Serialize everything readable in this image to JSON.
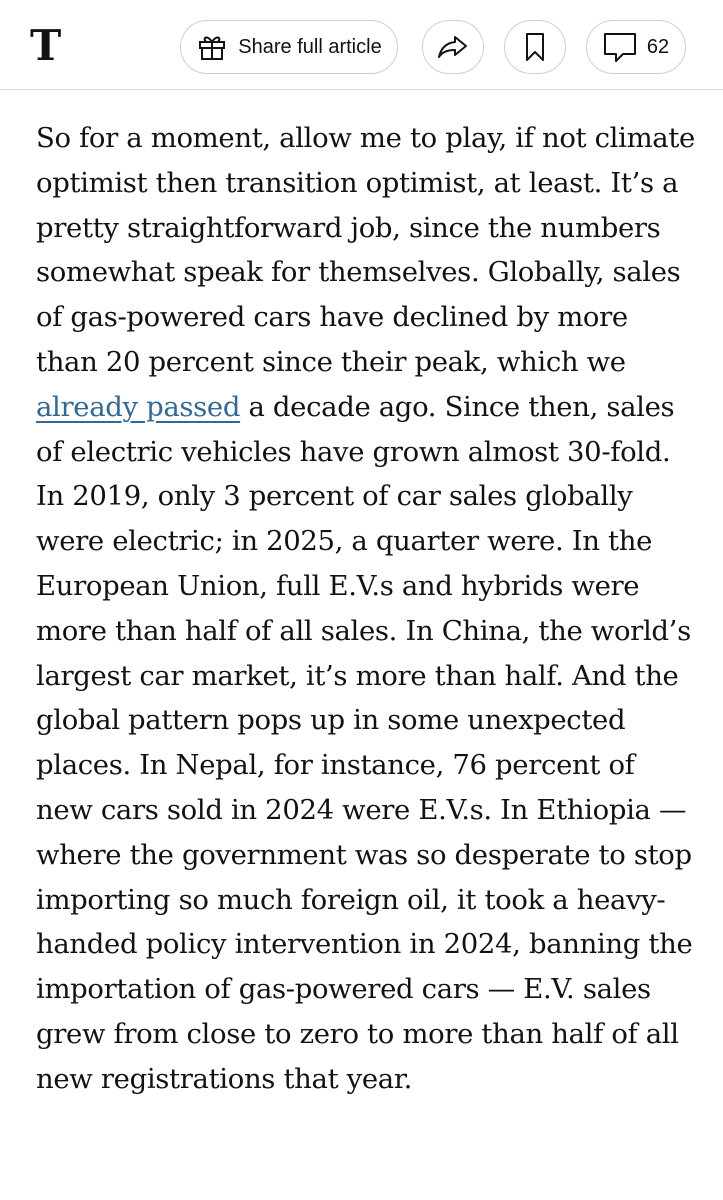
{
  "toolbar": {
    "logo_glyph": "T",
    "share_label": "Share full article",
    "comment_count": "62",
    "icons": {
      "share": "gift-icon",
      "forward": "forward-arrow-icon",
      "save": "bookmark-icon",
      "comments": "comment-bubble-icon"
    }
  },
  "article": {
    "part1": "So for a moment, allow me to play, if not climate optimist then transition optimist, at least. It’s a pretty straightforward job, since the numbers somewhat speak for themselves. Globally, sales of gas-powered cars have declined by more than 20 percent since their peak, which we ",
    "link_text": "already passed",
    "part2": " a decade ago. Since then, sales of electric vehicles have grown almost 30-fold. In 2019, only 3 percent of car sales globally were electric; in 2025, a quarter were. In the European Union, full E.V.s and hybrids were more than half of all sales. In China, the world’s largest car market, it’s more than half. And the global pattern pops up in some unexpected places. In Nepal, for instance, 76 percent of new cars sold in 2024 were E.V.s. In Ethiopia — where the government was so desperate to stop importing so much foreign oil, it took a heavy-handed policy intervention in 2024, banning the importation of gas-powered cars — E.V. sales grew from close to zero to more than half of all new registrations that year."
  },
  "colors": {
    "text": "#121212",
    "link": "#326891",
    "border": "#cfcfcf"
  }
}
